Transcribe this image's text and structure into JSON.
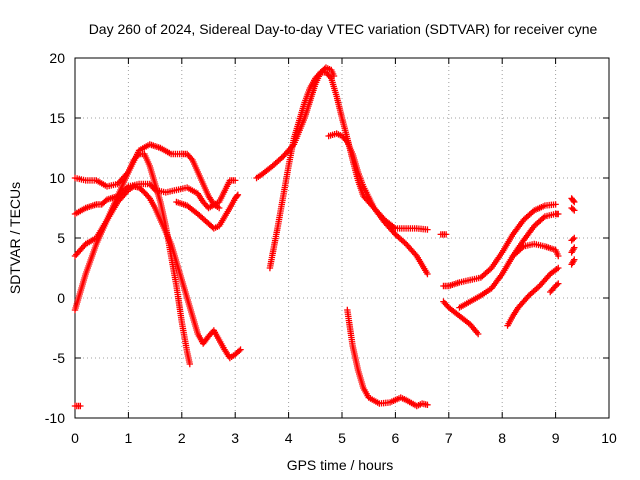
{
  "chart_data": {
    "type": "scatter",
    "title": "Day 260 of 2024, Sidereal Day-to-day VTEC variation (SDTVAR) for receiver cyne",
    "xlabel": "GPS time / hours",
    "ylabel": "SDTVAR / TECUs",
    "xlim": [
      0,
      10
    ],
    "ylim": [
      -10,
      20
    ],
    "xticks": [
      0,
      1,
      2,
      3,
      4,
      5,
      6,
      7,
      8,
      9,
      10
    ],
    "yticks": [
      -10,
      -5,
      0,
      5,
      10,
      15,
      20
    ],
    "grid": true,
    "marker": "+",
    "color": "#ff0000",
    "series": [
      {
        "name": "s1",
        "x": [
          0.0,
          0.2,
          0.4,
          0.5,
          0.6,
          0.8,
          1.0,
          1.2,
          1.4,
          1.5,
          1.7,
          1.9,
          2.1,
          2.3,
          2.4,
          2.5,
          2.7,
          2.9,
          3.0
        ],
        "y": [
          7.0,
          7.5,
          7.8,
          7.8,
          8.2,
          8.5,
          9.3,
          9.5,
          9.5,
          9.0,
          8.8,
          9.0,
          9.2,
          8.7,
          8.0,
          7.5,
          8.0,
          9.8,
          9.8
        ]
      },
      {
        "name": "s2",
        "x": [
          0.0,
          0.2,
          0.4,
          0.6,
          0.8,
          1.0,
          1.2,
          1.4,
          1.6,
          1.8,
          2.0,
          2.1,
          2.2,
          2.3,
          2.5,
          2.6,
          2.7
        ],
        "y": [
          10.0,
          9.8,
          9.8,
          9.3,
          9.5,
          10.5,
          12.3,
          12.8,
          12.5,
          12.0,
          12.0,
          12.0,
          11.5,
          10.5,
          8.5,
          7.8,
          7.5
        ]
      },
      {
        "name": "s3",
        "x": [
          0.0,
          0.1,
          0.2,
          0.4,
          0.6,
          0.8,
          1.0,
          1.1,
          1.2,
          1.3,
          1.4,
          1.5,
          1.6,
          1.7,
          1.8,
          1.9,
          2.0,
          2.1,
          2.15
        ],
        "y": [
          3.5,
          4.0,
          4.5,
          5.0,
          6.5,
          8.5,
          10.5,
          11.5,
          12.0,
          12.0,
          11.0,
          9.5,
          8.0,
          6.0,
          3.5,
          1.0,
          -2.0,
          -4.5,
          -5.5
        ]
      },
      {
        "name": "s4",
        "x": [
          0.0,
          0.1,
          0.2,
          0.4,
          0.6,
          0.8,
          1.0,
          1.1,
          1.2,
          1.3,
          1.4,
          1.5,
          1.6,
          1.7,
          1.8,
          1.9,
          2.0,
          2.1,
          2.2,
          2.3,
          2.4,
          2.5,
          2.6,
          2.7,
          2.8,
          2.9,
          3.0,
          3.1
        ],
        "y": [
          -1.0,
          0.5,
          2.0,
          4.5,
          6.5,
          8.0,
          9.0,
          9.3,
          9.2,
          8.8,
          8.3,
          7.5,
          6.5,
          5.5,
          4.5,
          3.0,
          1.5,
          0.0,
          -1.5,
          -3.0,
          -3.8,
          -3.2,
          -2.7,
          -3.5,
          -4.3,
          -5.0,
          -4.7,
          -4.3
        ]
      },
      {
        "name": "s5",
        "x": [
          1.9,
          2.1,
          2.3,
          2.5,
          2.6,
          2.7,
          2.9,
          3.0,
          3.05
        ],
        "y": [
          8.0,
          7.7,
          7.0,
          6.2,
          5.8,
          6.0,
          7.5,
          8.3,
          8.6
        ]
      },
      {
        "name": "s6",
        "x": [
          0.0,
          0.1
        ],
        "y": [
          -9.0,
          -9.0
        ]
      },
      {
        "name": "s7",
        "x": [
          3.4,
          3.5,
          3.7,
          3.9,
          4.1,
          4.3,
          4.5,
          4.6,
          4.7,
          4.8,
          4.85
        ],
        "y": [
          10.0,
          10.3,
          11.0,
          11.8,
          12.8,
          15.0,
          17.8,
          18.8,
          19.2,
          19.0,
          18.5
        ]
      },
      {
        "name": "s8",
        "x": [
          3.65,
          3.8,
          3.9,
          4.0,
          4.1,
          4.2,
          4.3,
          4.4,
          4.5,
          4.6,
          4.7,
          4.8,
          4.9,
          5.0,
          5.1,
          5.2,
          5.3,
          5.4,
          5.6,
          5.8,
          6.0,
          6.2,
          6.4,
          6.6
        ],
        "y": [
          2.5,
          6.0,
          8.5,
          11.0,
          13.3,
          14.8,
          16.3,
          17.5,
          18.3,
          18.8,
          18.8,
          18.3,
          16.8,
          15.0,
          13.3,
          11.5,
          9.8,
          8.5,
          7.5,
          6.5,
          5.8,
          5.8,
          5.8,
          5.7
        ]
      },
      {
        "name": "s9",
        "x": [
          4.75,
          4.9,
          5.0,
          5.1,
          5.2,
          5.3,
          5.4,
          5.6,
          5.8,
          6.0,
          6.2,
          6.4,
          6.6
        ],
        "y": [
          13.5,
          13.7,
          13.5,
          13.0,
          12.0,
          10.5,
          9.3,
          7.5,
          6.3,
          5.3,
          4.5,
          3.5,
          2.0
        ]
      },
      {
        "name": "s10",
        "x": [
          5.1,
          5.2,
          5.3,
          5.4,
          5.5,
          5.7,
          5.9,
          6.1,
          6.2,
          6.4,
          6.5,
          6.6
        ],
        "y": [
          -1.0,
          -4.0,
          -6.0,
          -7.5,
          -8.3,
          -8.8,
          -8.7,
          -8.3,
          -8.5,
          -9.0,
          -8.8,
          -8.9
        ]
      },
      {
        "name": "s11",
        "x": [
          6.85,
          6.95
        ],
        "y": [
          5.3,
          5.3
        ]
      },
      {
        "name": "s12",
        "x": [
          6.9,
          7.0,
          7.2,
          7.4,
          7.6,
          7.8,
          8.0,
          8.2,
          8.4,
          8.6,
          8.8,
          9.0
        ],
        "y": [
          1.0,
          1.0,
          1.3,
          1.5,
          1.7,
          2.5,
          3.8,
          5.3,
          6.5,
          7.3,
          7.7,
          7.8
        ]
      },
      {
        "name": "s13",
        "x": [
          6.9,
          7.0,
          7.2,
          7.4,
          7.55
        ],
        "y": [
          -0.3,
          -0.8,
          -1.5,
          -2.2,
          -3.0
        ]
      },
      {
        "name": "s14",
        "x": [
          7.2,
          7.4,
          7.6,
          7.8,
          8.0,
          8.2,
          8.4,
          8.6,
          8.8,
          9.0,
          9.05
        ],
        "y": [
          -0.8,
          -0.3,
          0.2,
          0.8,
          2.0,
          3.5,
          4.3,
          4.5,
          4.3,
          4.0,
          3.5
        ]
      },
      {
        "name": "s15",
        "x": [
          8.1,
          8.2,
          8.3,
          8.4,
          8.5,
          8.7,
          8.9,
          9.05
        ],
        "y": [
          -2.3,
          -1.5,
          -0.8,
          -0.3,
          0.2,
          1.0,
          2.0,
          2.5
        ]
      },
      {
        "name": "s16",
        "x": [
          8.2,
          8.4,
          8.6,
          8.8,
          9.0,
          9.05
        ],
        "y": [
          3.5,
          4.8,
          6.0,
          6.8,
          7.0,
          7.0
        ]
      },
      {
        "name": "s17",
        "x": [
          8.9,
          9.0,
          9.05
        ],
        "y": [
          0.5,
          1.0,
          1.2
        ]
      },
      {
        "name": "s18",
        "x": [
          9.3,
          9.35
        ],
        "y": [
          8.3,
          8.0
        ]
      },
      {
        "name": "s19",
        "x": [
          9.3,
          9.35
        ],
        "y": [
          7.5,
          7.3
        ]
      },
      {
        "name": "s20",
        "x": [
          9.3,
          9.35
        ],
        "y": [
          4.8,
          5.0
        ]
      },
      {
        "name": "s21",
        "x": [
          9.3,
          9.35
        ],
        "y": [
          3.8,
          4.2
        ]
      },
      {
        "name": "s22",
        "x": [
          9.3,
          9.35
        ],
        "y": [
          2.8,
          3.2
        ]
      }
    ]
  }
}
